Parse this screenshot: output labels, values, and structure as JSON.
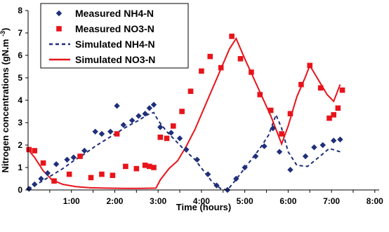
{
  "chart_data": {
    "type": "line",
    "xlabel": "Time (hours)",
    "ylabel": "Nitrogen concentrations (gN.m",
    "ylabel_sup": "-3",
    "ylabel_close": ")",
    "xlim": [
      0,
      8.1
    ],
    "ylim": [
      0,
      8
    ],
    "x_ticks": [
      {
        "value": 1,
        "label": "1:00"
      },
      {
        "value": 2,
        "label": "2:00"
      },
      {
        "value": 3,
        "label": "3:00"
      },
      {
        "value": 4,
        "label": "4:00"
      },
      {
        "value": 5,
        "label": "5:00"
      },
      {
        "value": 6,
        "label": "6:00"
      },
      {
        "value": 7,
        "label": "7:00"
      },
      {
        "value": 8,
        "label": "8:00"
      }
    ],
    "y_ticks": [
      {
        "value": 0,
        "label": "0"
      },
      {
        "value": 1,
        "label": "1"
      },
      {
        "value": 2,
        "label": "2"
      },
      {
        "value": 3,
        "label": "3"
      },
      {
        "value": 4,
        "label": "4"
      },
      {
        "value": 5,
        "label": "5"
      },
      {
        "value": 6,
        "label": "6"
      },
      {
        "value": 7,
        "label": "7"
      },
      {
        "value": 8,
        "label": "8"
      }
    ],
    "grid": false,
    "legend_position": "top-left",
    "series": [
      {
        "name": "Measured NH4-N",
        "kind": "marker-diamond",
        "color": "#1f2f7a",
        "points": [
          [
            0.02,
            0.05
          ],
          [
            0.15,
            0.25
          ],
          [
            0.3,
            0.5
          ],
          [
            0.45,
            0.75
          ],
          [
            0.65,
            1.15
          ],
          [
            0.9,
            1.35
          ],
          [
            1.05,
            1.45
          ],
          [
            1.3,
            1.75
          ],
          [
            1.55,
            2.6
          ],
          [
            1.7,
            2.5
          ],
          [
            1.9,
            2.6
          ],
          [
            2.05,
            3.75
          ],
          [
            2.2,
            2.9
          ],
          [
            2.4,
            3.1
          ],
          [
            2.55,
            3.3
          ],
          [
            2.7,
            3.4
          ],
          [
            2.8,
            3.65
          ],
          [
            2.9,
            3.8
          ],
          [
            3.05,
            2.8
          ],
          [
            3.3,
            2.55
          ],
          [
            3.5,
            2.3
          ],
          [
            3.65,
            1.8
          ],
          [
            3.9,
            1.35
          ],
          [
            4.15,
            0.7
          ],
          [
            4.35,
            0.2
          ],
          [
            4.6,
            0.0
          ],
          [
            4.8,
            0.5
          ],
          [
            5.0,
            1.0
          ],
          [
            5.25,
            1.5
          ],
          [
            5.45,
            1.95
          ],
          [
            5.65,
            2.75
          ],
          [
            5.8,
            1.7
          ],
          [
            6.05,
            0.9
          ],
          [
            6.4,
            1.5
          ],
          [
            6.6,
            1.9
          ],
          [
            6.8,
            2.0
          ],
          [
            7.05,
            2.2
          ],
          [
            7.2,
            2.25
          ]
        ]
      },
      {
        "name": "Measured NO3-N",
        "kind": "marker-square",
        "color": "#e8141b",
        "points": [
          [
            0.02,
            1.8
          ],
          [
            0.15,
            1.75
          ],
          [
            0.35,
            1.2
          ],
          [
            0.6,
            0.4
          ],
          [
            0.95,
            0.7
          ],
          [
            1.2,
            1.5
          ],
          [
            1.45,
            0.55
          ],
          [
            1.7,
            0.7
          ],
          [
            1.95,
            0.65
          ],
          [
            2.05,
            2.5
          ],
          [
            2.25,
            1.05
          ],
          [
            2.5,
            0.95
          ],
          [
            2.7,
            1.1
          ],
          [
            2.8,
            1.05
          ],
          [
            2.9,
            1.0
          ],
          [
            3.05,
            2.35
          ],
          [
            3.2,
            2.3
          ],
          [
            3.35,
            2.85
          ],
          [
            3.55,
            3.5
          ],
          [
            3.75,
            4.4
          ],
          [
            4.0,
            5.3
          ],
          [
            4.2,
            5.95
          ],
          [
            4.45,
            5.45
          ],
          [
            4.7,
            6.85
          ],
          [
            4.9,
            5.85
          ],
          [
            5.15,
            5.25
          ],
          [
            5.35,
            4.25
          ],
          [
            5.6,
            3.55
          ],
          [
            5.85,
            2.5
          ],
          [
            6.05,
            3.4
          ],
          [
            6.3,
            4.7
          ],
          [
            6.5,
            5.55
          ],
          [
            6.75,
            4.55
          ],
          [
            6.95,
            3.2
          ],
          [
            7.05,
            3.35
          ],
          [
            7.15,
            3.65
          ],
          [
            7.25,
            4.45
          ]
        ]
      },
      {
        "name": "Simulated NH4-N",
        "kind": "line-dashed",
        "color": "#1f2f7a",
        "points": [
          [
            0.0,
            0.05
          ],
          [
            0.2,
            0.25
          ],
          [
            0.5,
            0.6
          ],
          [
            0.8,
            0.95
          ],
          [
            1.05,
            1.3
          ],
          [
            1.3,
            1.6
          ],
          [
            1.55,
            1.95
          ],
          [
            1.8,
            2.25
          ],
          [
            2.05,
            2.55
          ],
          [
            2.3,
            2.85
          ],
          [
            2.55,
            3.1
          ],
          [
            2.75,
            3.35
          ],
          [
            2.9,
            3.45
          ],
          [
            3.0,
            3.1
          ],
          [
            3.2,
            2.6
          ],
          [
            3.4,
            2.2
          ],
          [
            3.6,
            1.8
          ],
          [
            3.85,
            1.35
          ],
          [
            4.05,
            0.85
          ],
          [
            4.25,
            0.35
          ],
          [
            4.45,
            0.05
          ],
          [
            4.6,
            0.0
          ],
          [
            4.75,
            0.35
          ],
          [
            4.95,
            0.85
          ],
          [
            5.15,
            1.35
          ],
          [
            5.35,
            1.85
          ],
          [
            5.55,
            2.45
          ],
          [
            5.72,
            3.35
          ],
          [
            5.85,
            2.75
          ],
          [
            6.0,
            1.7
          ],
          [
            6.2,
            1.1
          ],
          [
            6.45,
            1.05
          ],
          [
            6.7,
            1.45
          ],
          [
            6.95,
            1.85
          ],
          [
            7.2,
            1.7
          ]
        ]
      },
      {
        "name": "Simulated NO3-N",
        "kind": "line-solid",
        "color": "#e8141b",
        "points": [
          [
            0.0,
            1.8
          ],
          [
            0.15,
            1.45
          ],
          [
            0.35,
            0.85
          ],
          [
            0.55,
            0.45
          ],
          [
            0.8,
            0.25
          ],
          [
            1.1,
            0.15
          ],
          [
            1.4,
            0.1
          ],
          [
            1.8,
            0.08
          ],
          [
            2.2,
            0.07
          ],
          [
            2.6,
            0.07
          ],
          [
            2.95,
            0.08
          ],
          [
            3.05,
            0.45
          ],
          [
            3.25,
            0.95
          ],
          [
            3.45,
            1.3
          ],
          [
            3.65,
            1.95
          ],
          [
            3.85,
            2.7
          ],
          [
            4.05,
            3.6
          ],
          [
            4.25,
            4.5
          ],
          [
            4.45,
            5.4
          ],
          [
            4.65,
            6.3
          ],
          [
            4.8,
            6.75
          ],
          [
            5.0,
            5.85
          ],
          [
            5.2,
            5.0
          ],
          [
            5.4,
            4.15
          ],
          [
            5.6,
            3.3
          ],
          [
            5.85,
            2.05
          ],
          [
            6.0,
            2.85
          ],
          [
            6.2,
            4.15
          ],
          [
            6.4,
            5.05
          ],
          [
            6.5,
            5.55
          ],
          [
            6.7,
            4.9
          ],
          [
            6.9,
            4.25
          ],
          [
            7.05,
            3.95
          ],
          [
            7.2,
            4.7
          ]
        ]
      }
    ]
  }
}
